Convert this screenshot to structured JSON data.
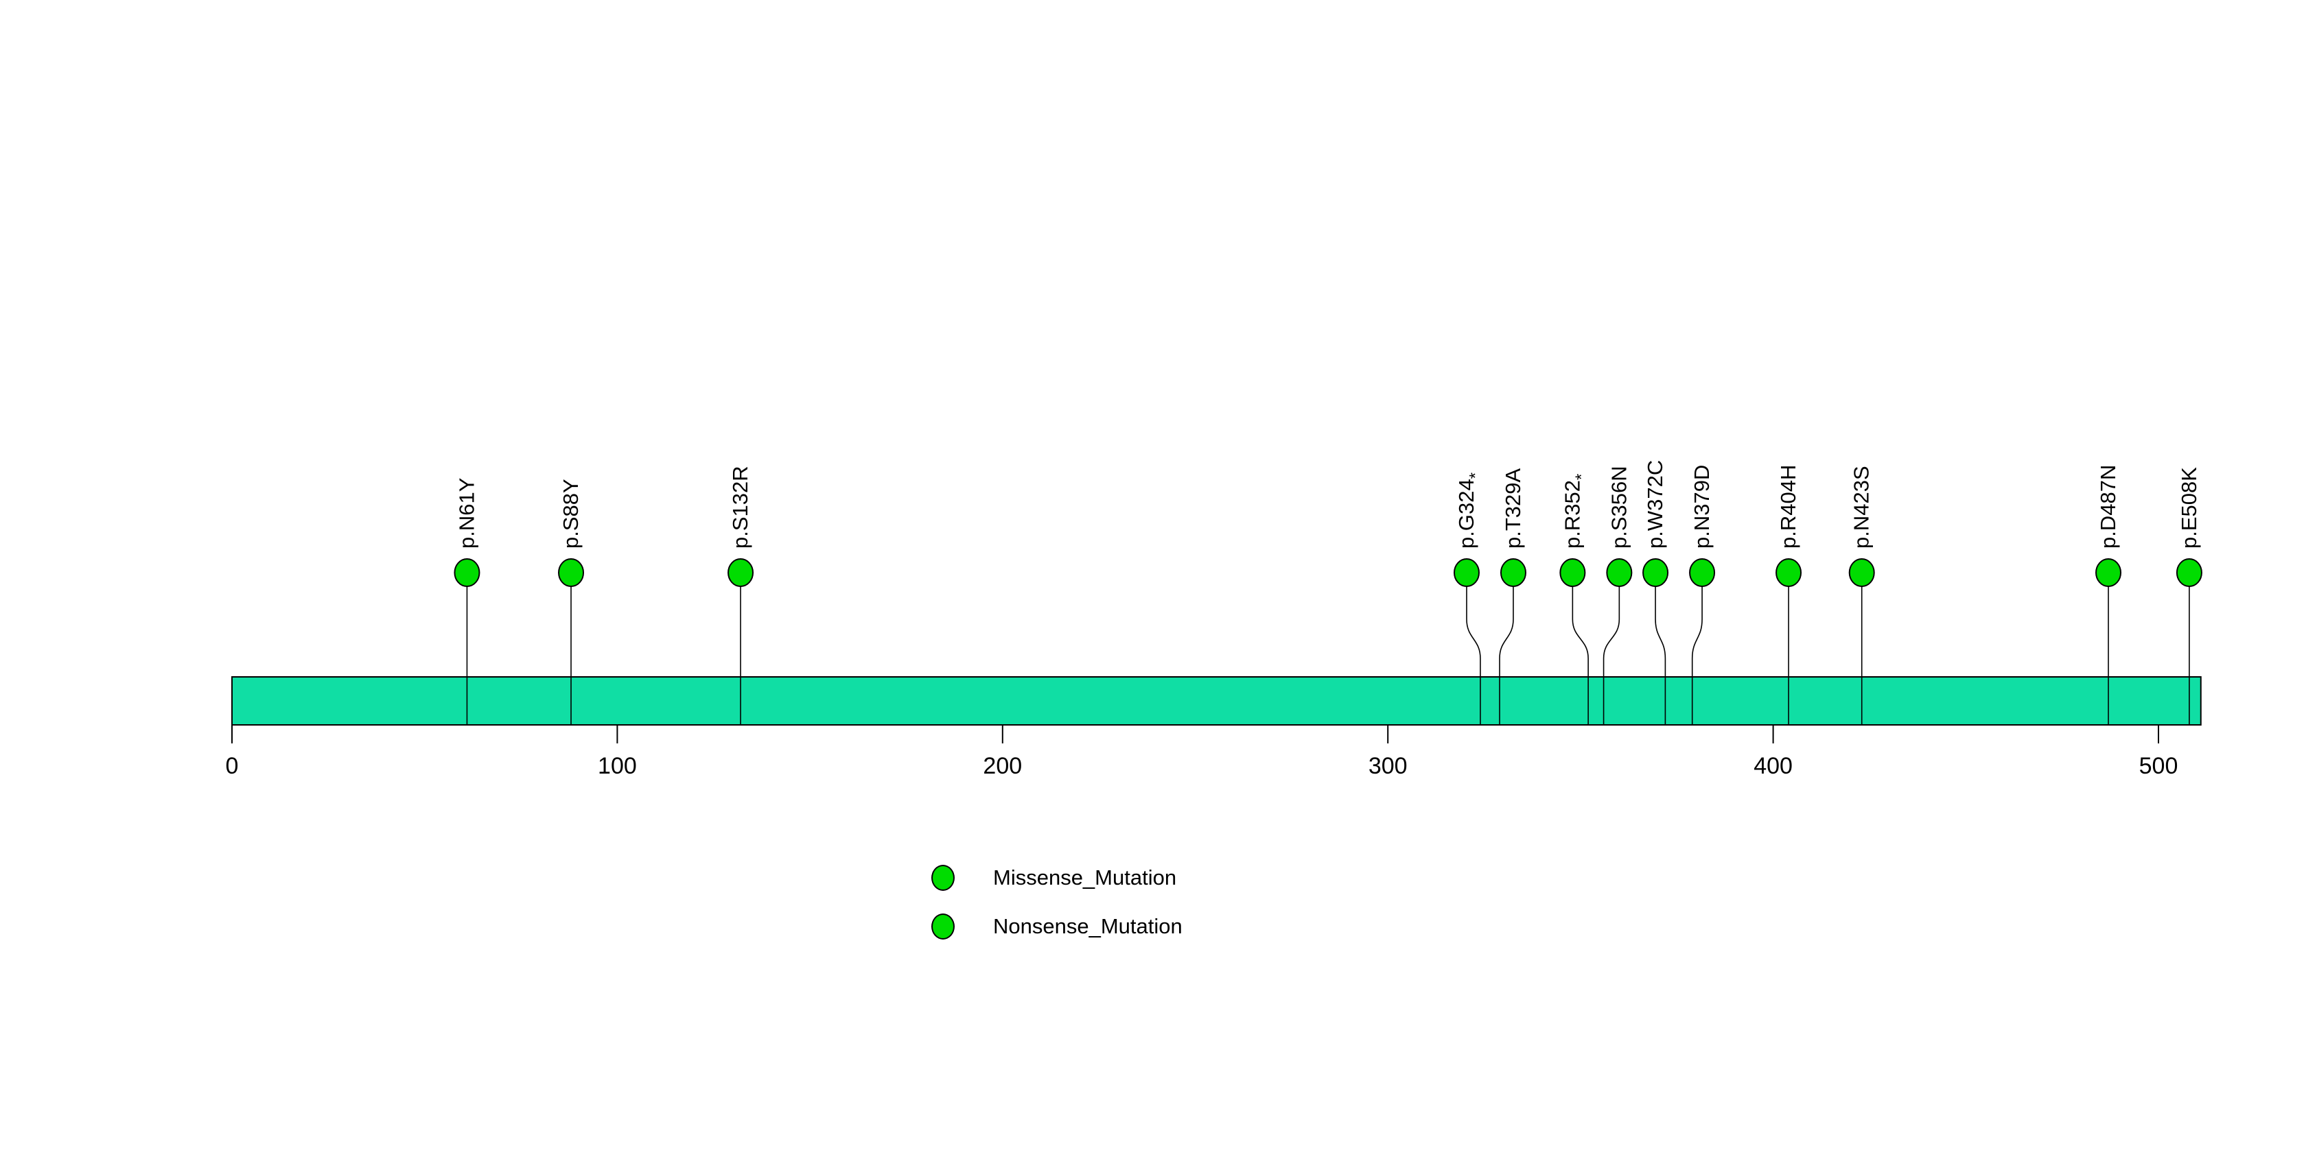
{
  "chart_data": {
    "type": "lollipop",
    "title": "",
    "xlabel": "",
    "ylabel": "",
    "xlim": [
      0,
      511
    ],
    "x_ticks": [
      0,
      100,
      200,
      300,
      400,
      500
    ],
    "grid": false,
    "legend_position": "bottom-left",
    "colors": {
      "gene_body": "#10DEA4",
      "mutation_point": "#00DC00",
      "stroke": "#000000",
      "background": "#ffffff"
    },
    "mutations": [
      {
        "label": "p.N61Y",
        "position": 61,
        "type": "Missense_Mutation"
      },
      {
        "label": "p.S88Y",
        "position": 88,
        "type": "Missense_Mutation"
      },
      {
        "label": "p.S132R",
        "position": 132,
        "type": "Missense_Mutation"
      },
      {
        "label": "p.G324*",
        "position": 324,
        "type": "Nonsense_Mutation"
      },
      {
        "label": "p.T329A",
        "position": 329,
        "type": "Missense_Mutation"
      },
      {
        "label": "p.R352*",
        "position": 352,
        "type": "Nonsense_Mutation"
      },
      {
        "label": "p.S356N",
        "position": 356,
        "type": "Missense_Mutation"
      },
      {
        "label": "p.W372C",
        "position": 372,
        "type": "Missense_Mutation"
      },
      {
        "label": "p.N379D",
        "position": 379,
        "type": "Missense_Mutation"
      },
      {
        "label": "p.R404H",
        "position": 404,
        "type": "Missense_Mutation"
      },
      {
        "label": "p.N423S",
        "position": 423,
        "type": "Missense_Mutation"
      },
      {
        "label": "p.D487N",
        "position": 487,
        "type": "Missense_Mutation"
      },
      {
        "label": "p.E508K",
        "position": 508,
        "type": "Missense_Mutation"
      }
    ],
    "legend": [
      {
        "label": "Missense_Mutation",
        "color": "#00DC00"
      },
      {
        "label": "Nonsense_Mutation",
        "color": "#00DC00"
      }
    ]
  }
}
